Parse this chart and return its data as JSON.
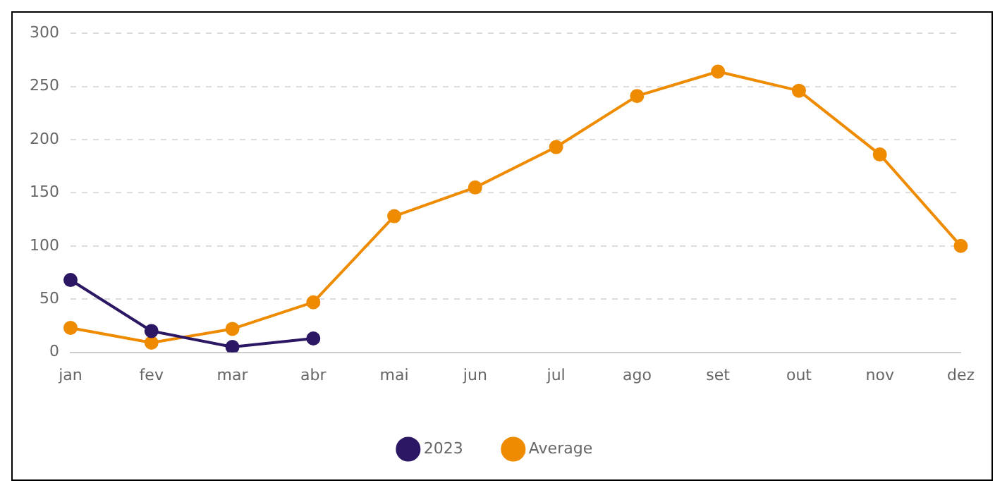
{
  "chart_data": {
    "type": "line",
    "categories": [
      "jan",
      "fev",
      "mar",
      "abr",
      "mai",
      "jun",
      "jul",
      "ago",
      "set",
      "out",
      "nov",
      "dez"
    ],
    "series": [
      {
        "name": "2023",
        "color": "#2b1763",
        "values": [
          68,
          20,
          5,
          13,
          null,
          null,
          null,
          null,
          null,
          null,
          null,
          null
        ]
      },
      {
        "name": "Average",
        "color": "#ee8b00",
        "values": [
          23,
          9,
          22,
          47,
          128,
          155,
          193,
          241,
          264,
          246,
          186,
          100
        ]
      }
    ],
    "ylim": [
      0,
      300
    ],
    "yticks": [
      0,
      50,
      100,
      150,
      200,
      250,
      300
    ],
    "grid": "y",
    "legend": "bottom",
    "marker": "circle",
    "line_style": "solid"
  }
}
